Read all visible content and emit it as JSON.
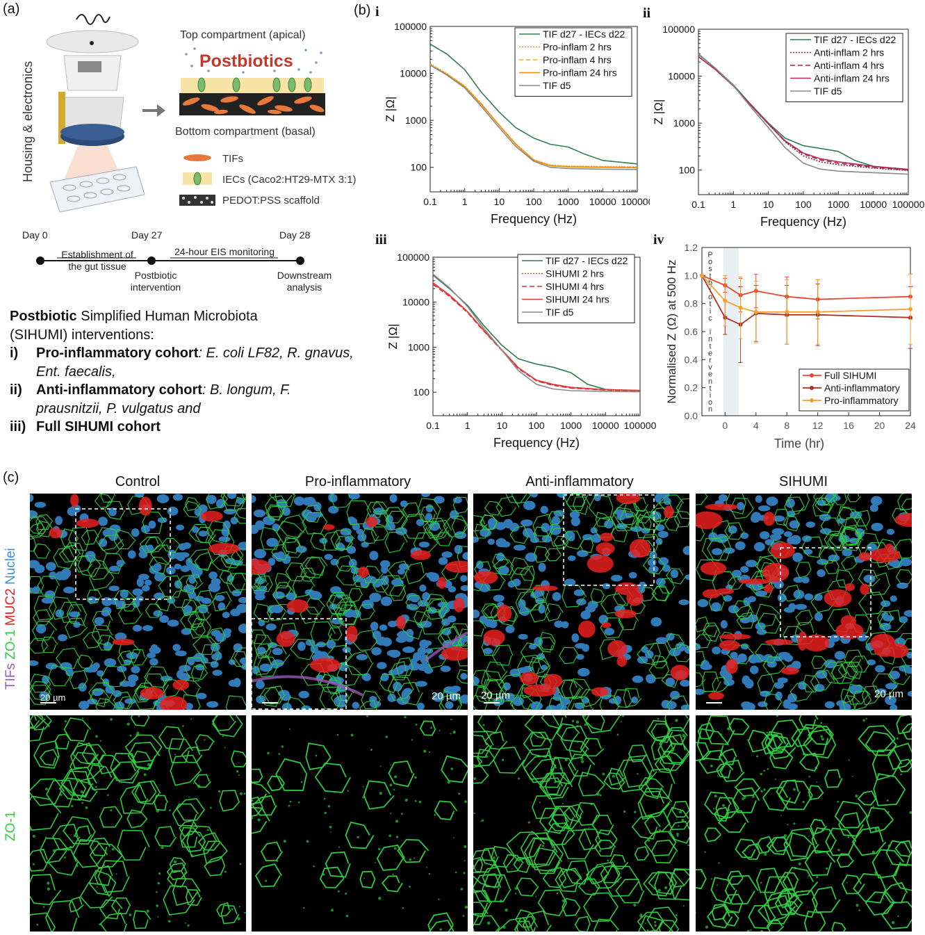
{
  "panel_labels": {
    "a": "(a)",
    "b": "(b)",
    "c": "(c)"
  },
  "schematic": {
    "housing_label": "Housing & electronics",
    "top_compartment": "Top compartment (apical)",
    "postbiotics": "Postbiotics",
    "bottom_compartment": "Bottom compartment (basal)",
    "legend": {
      "tifs": "TIFs",
      "iecs": "IECs (Caco2:HT29-MTX 3:1)",
      "scaffold": "PEDOT:PSS scaffold"
    }
  },
  "timeline": {
    "day0": "Day 0",
    "day27": "Day 27",
    "day28": "Day 28",
    "establishment_1": "Establishment of",
    "establishment_2": "the gut tissue",
    "eis": "24-hour EIS monitoring",
    "postbiotic_1": "Postbiotic",
    "postbiotic_2": "intervention",
    "downstream_1": "Downstream",
    "downstream_2": "analysis"
  },
  "description": {
    "intro_bold": "Postbiotic",
    "intro_rest_1": " Simplified Human Microbiota",
    "intro_rest_2": "(SIHUMI) interventions:",
    "items": [
      {
        "num": "i)",
        "bold": "Pro-inflammatory cohort",
        "rest": ": E. coli LF82, R. gnavus, Ent. faecalis,"
      },
      {
        "num": "ii)",
        "bold": "Anti-inflammatory cohort",
        "rest": ": B. longum, F. prausnitzii, P. vulgatus and"
      },
      {
        "num": "iii)",
        "bold": "Full SIHUMI cohort",
        "rest": ""
      }
    ]
  },
  "chart_data": [
    {
      "id": "i",
      "type": "line",
      "xscale": "log",
      "yscale": "log",
      "xlabel": "Frequency (Hz)",
      "ylabel": "Z |Ω|",
      "xlim": [
        0.1,
        100000
      ],
      "ylim": [
        30,
        100000
      ],
      "xticks": [
        "0.1",
        "1",
        "10",
        "100",
        "1000",
        "10000",
        "100000"
      ],
      "yticks": [
        "100",
        "1000",
        "10000",
        "100000"
      ],
      "series": [
        {
          "name": "TIF d27 - IECs d22",
          "color": "#2e7d4f",
          "dash": "solid",
          "x": [
            0.1,
            0.3,
            1,
            3,
            10,
            30,
            100,
            300,
            1000,
            3000,
            10000,
            100000
          ],
          "y": [
            42000,
            26000,
            12000,
            4000,
            1500,
            700,
            420,
            310,
            270,
            190,
            140,
            118
          ]
        },
        {
          "name": "Pro-inflam 2 hrs",
          "color": "#f08c00",
          "dash": "2,2",
          "x": [
            0.1,
            0.3,
            1,
            3,
            10,
            30,
            100,
            300,
            1000,
            10000,
            100000
          ],
          "y": [
            16000,
            10000,
            5400,
            2300,
            800,
            320,
            145,
            112,
            106,
            104,
            102
          ]
        },
        {
          "name": "Pro-inflam 4 hrs",
          "color": "#f5a623",
          "dash": "6,4",
          "x": [
            0.1,
            0.3,
            1,
            3,
            10,
            30,
            100,
            300,
            1000,
            10000,
            100000
          ],
          "y": [
            15500,
            9800,
            5300,
            2250,
            790,
            315,
            143,
            110,
            104,
            102,
            100
          ]
        },
        {
          "name": "Pro-inflam 24 hrs",
          "color": "#f08c00",
          "dash": "solid",
          "x": [
            0.1,
            0.3,
            1,
            3,
            10,
            30,
            100,
            300,
            1000,
            10000,
            100000
          ],
          "y": [
            15000,
            9600,
            5200,
            2200,
            780,
            310,
            142,
            108,
            102,
            100,
            98
          ]
        },
        {
          "name": "TIF d5",
          "color": "#888888",
          "dash": "solid",
          "x": [
            0.1,
            0.3,
            1,
            3,
            10,
            30,
            100,
            300,
            1000,
            10000,
            100000
          ],
          "y": [
            15000,
            9300,
            4900,
            2000,
            700,
            280,
            135,
            100,
            94,
            91,
            90
          ]
        }
      ]
    },
    {
      "id": "ii",
      "type": "line",
      "xscale": "log",
      "yscale": "log",
      "xlabel": "Frequency (Hz)",
      "ylabel": "Z |Ω|",
      "xlim": [
        0.1,
        100000
      ],
      "ylim": [
        30,
        100000
      ],
      "xticks": [
        "0.1",
        "1",
        "10",
        "100",
        "1000",
        "10000",
        "100000"
      ],
      "yticks": [
        "100",
        "1000",
        "10000",
        "100000"
      ],
      "series": [
        {
          "name": "TIF d27 - IECs d22",
          "color": "#2e7d4f",
          "dash": "solid",
          "x": [
            0.1,
            0.3,
            1,
            3,
            10,
            30,
            100,
            300,
            1000,
            3000,
            10000,
            100000
          ],
          "y": [
            29000,
            15000,
            6500,
            2600,
            1000,
            480,
            330,
            290,
            250,
            160,
            120,
            102
          ]
        },
        {
          "name": "Anti-inflam 2 hrs",
          "color": "#8b1a3a",
          "dash": "2,2",
          "x": [
            0.1,
            0.3,
            1,
            3,
            10,
            30,
            100,
            300,
            1000,
            10000,
            100000
          ],
          "y": [
            26000,
            14000,
            6200,
            2500,
            950,
            400,
            200,
            150,
            130,
            110,
            98
          ]
        },
        {
          "name": "Anti-inflam 4 hrs",
          "color": "#a8234d",
          "dash": "7,4",
          "x": [
            0.1,
            0.3,
            1,
            3,
            10,
            30,
            100,
            300,
            1000,
            10000,
            100000
          ],
          "y": [
            26000,
            14000,
            6200,
            2500,
            950,
            410,
            220,
            165,
            140,
            115,
            100
          ]
        },
        {
          "name": "Anti-inflam 24 hrs",
          "color": "#b8285a",
          "dash": "solid",
          "x": [
            0.1,
            0.3,
            1,
            3,
            10,
            30,
            100,
            300,
            1000,
            10000,
            100000
          ],
          "y": [
            26000,
            14000,
            6200,
            2500,
            960,
            420,
            230,
            175,
            150,
            120,
            104
          ]
        },
        {
          "name": "TIF d5",
          "color": "#888888",
          "dash": "solid",
          "x": [
            0.1,
            0.3,
            1,
            3,
            10,
            30,
            100,
            300,
            1000,
            10000,
            100000
          ],
          "y": [
            30000,
            15000,
            6300,
            2300,
            800,
            300,
            140,
            105,
            95,
            88,
            82
          ]
        }
      ]
    },
    {
      "id": "iii",
      "type": "line",
      "xscale": "log",
      "yscale": "log",
      "xlabel": "Frequency (Hz)",
      "ylabel": "Z |Ω|",
      "xlim": [
        0.1,
        100000
      ],
      "ylim": [
        30,
        100000
      ],
      "xticks": [
        "0.1",
        "1",
        "10",
        "100",
        "1000",
        "10000",
        "100000"
      ],
      "yticks": [
        "100",
        "1000",
        "10000",
        "100000"
      ],
      "series": [
        {
          "name": "TIF d27 - IECs d22",
          "color": "#2e7d4f",
          "dash": "solid",
          "x": [
            0.1,
            0.3,
            1,
            3,
            10,
            30,
            100,
            300,
            1000,
            3000,
            10000,
            100000
          ],
          "y": [
            40000,
            20000,
            8500,
            3000,
            1100,
            550,
            420,
            360,
            270,
            150,
            115,
            108
          ]
        },
        {
          "name": "SIHUMI 2 hrs",
          "color": "#e53935",
          "dash": "2,2",
          "x": [
            0.1,
            0.3,
            1,
            3,
            10,
            30,
            100,
            300,
            1000,
            10000,
            100000
          ],
          "y": [
            26000,
            14000,
            6000,
            2300,
            850,
            340,
            180,
            145,
            125,
            112,
            108
          ]
        },
        {
          "name": "SIHUMI 4 hrs",
          "color": "#d32f2f",
          "dash": "7,4",
          "x": [
            0.1,
            0.3,
            1,
            3,
            10,
            30,
            100,
            300,
            1000,
            10000,
            100000
          ],
          "y": [
            25000,
            13500,
            5900,
            2250,
            840,
            335,
            178,
            142,
            123,
            111,
            107
          ]
        },
        {
          "name": "SIHUMI 24 hrs",
          "color": "#e53935",
          "dash": "solid",
          "x": [
            0.1,
            0.3,
            1,
            3,
            10,
            30,
            100,
            300,
            1000,
            10000,
            100000
          ],
          "y": [
            27000,
            14500,
            6200,
            2350,
            870,
            350,
            185,
            150,
            128,
            114,
            110
          ]
        },
        {
          "name": "TIF d5",
          "color": "#888888",
          "dash": "solid",
          "x": [
            0.1,
            0.3,
            1,
            3,
            10,
            30,
            100,
            300,
            1000,
            10000,
            100000
          ],
          "y": [
            42000,
            21000,
            8000,
            2600,
            850,
            300,
            150,
            118,
            108,
            104,
            102
          ]
        }
      ]
    },
    {
      "id": "iv",
      "type": "line",
      "xscale": "linear",
      "yscale": "linear",
      "xlabel": "Time (hr)",
      "ylabel": "Normalised Z (Ω) at 500 Hz",
      "xlim": [
        -3,
        24
      ],
      "ylim": [
        0,
        1.2
      ],
      "xticks": [
        "0",
        "4",
        "8",
        "12",
        "16",
        "20",
        "24"
      ],
      "yticks": [
        "0.0",
        "0.2",
        "0.4",
        "0.6",
        "0.8",
        "1.0",
        "1.2"
      ],
      "annotation": [
        "P",
        "o",
        "s",
        "t",
        "b",
        "i",
        "o",
        "t",
        "i",
        "c",
        "",
        "i",
        "n",
        "t",
        "e",
        "r",
        "v",
        "e",
        "n",
        "t",
        "i",
        "o",
        "n"
      ],
      "series": [
        {
          "name": "Full SIHUMI",
          "color": "#e8452a",
          "x": [
            -3,
            0,
            2,
            4,
            8,
            12,
            24
          ],
          "y": [
            1.0,
            0.93,
            0.86,
            0.89,
            0.85,
            0.83,
            0.85
          ],
          "err": [
            0,
            0.05,
            0.12,
            0.12,
            0.14,
            0.14,
            0.16
          ]
        },
        {
          "name": "Anti-inflammatory",
          "color": "#b03020",
          "x": [
            -3,
            0,
            2,
            4,
            8,
            12,
            24
          ],
          "y": [
            1.0,
            0.7,
            0.65,
            0.73,
            0.72,
            0.72,
            0.7
          ],
          "err": [
            0,
            0.12,
            0.27,
            0.2,
            0.21,
            0.22,
            0.22
          ]
        },
        {
          "name": "Pro-inflammatory",
          "color": "#f5a030",
          "x": [
            -3,
            0,
            2,
            4,
            8,
            12,
            24
          ],
          "y": [
            1.0,
            0.82,
            0.77,
            0.74,
            0.74,
            0.74,
            0.76
          ],
          "err": [
            0,
            0.18,
            0.22,
            0.22,
            0.23,
            0.23,
            0.25
          ]
        }
      ]
    }
  ],
  "microscopy": {
    "columns": [
      "Control",
      "Pro-inflammatory",
      "Anti-inflammatory",
      "SIHUMI"
    ],
    "row1_label": {
      "tifs": "TIFs",
      "zo1": "ZO-1",
      "muc2": "MUC2",
      "nuclei": "Nuclei"
    },
    "row2_label": "ZO-1",
    "scalebar": "20 µm",
    "colors": {
      "tifs": "#9b59b6",
      "zo1": "#2ecc40",
      "muc2": "#e82020",
      "nuclei": "#3a8fd8",
      "background": "#000000"
    }
  }
}
